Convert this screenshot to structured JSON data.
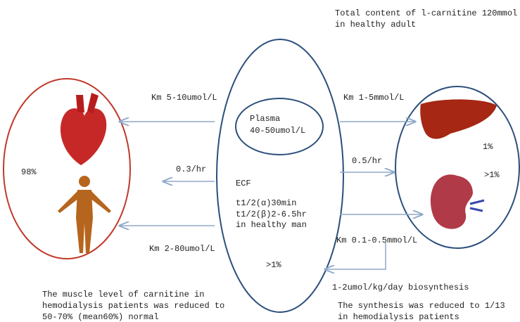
{
  "header": {
    "lines": [
      "Total content of l-carnitine 120mmol",
      "in healthy adult"
    ]
  },
  "left": {
    "percent": "98%"
  },
  "center": {
    "plasma": [
      "Plasma",
      "40-50umol/L"
    ],
    "ecf": [
      "ECF",
      "t1/2(α)30min",
      "t1/2(β)2-6.5hr",
      "in healthy man"
    ],
    "percent": ">1%"
  },
  "right": {
    "liver_percent": "1%",
    "kidney_percent": ">1%"
  },
  "arrows": {
    "left_top": "Km 5-10umol/L",
    "left_middle": "0.3/hr",
    "left_bottom": "Km 2-80umol/L",
    "right_top": "Km 1-5mmol/L",
    "right_middle": "0.5/hr",
    "right_bottom": "Km 0.1-0.5mmol/L",
    "biosynthesis": "1-2umol/kg/day biosynthesis"
  },
  "notes": {
    "muscle": [
      "The muscle level of carnitine in",
      "hemodialysis patients was reduced to",
      "50-70% (mean60%) normal"
    ],
    "synthesis": [
      "The synthesis was reduced to 1/13",
      "in hemodialysis patients"
    ]
  }
}
